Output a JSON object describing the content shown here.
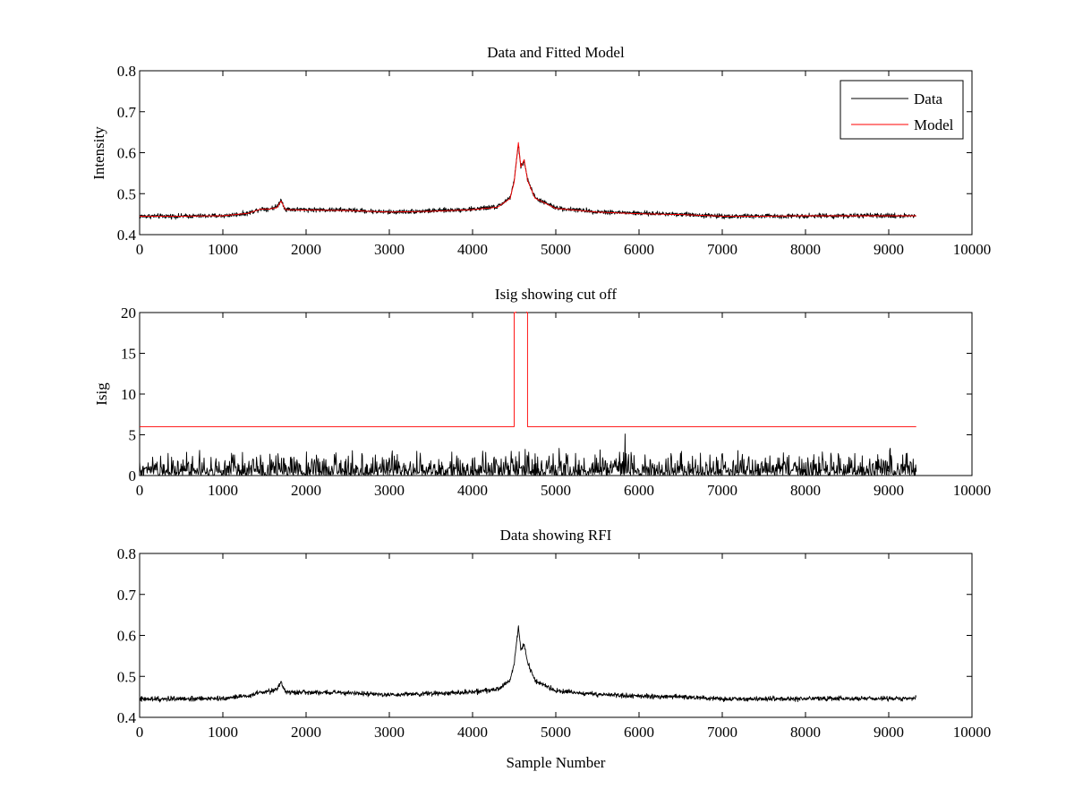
{
  "chart_data": [
    {
      "type": "line",
      "title": "Data and Fitted Model",
      "xlabel": "",
      "ylabel": "Intensity",
      "xlim": [
        0,
        10000
      ],
      "ylim": [
        0.4,
        0.8
      ],
      "xticks": [
        0,
        1000,
        2000,
        3000,
        4000,
        5000,
        6000,
        7000,
        8000,
        9000,
        10000
      ],
      "yticks": [
        0.4,
        0.5,
        0.6,
        0.7,
        0.8
      ],
      "grid": false,
      "legend": {
        "placement": "top-right",
        "entries": [
          "Data",
          "Model"
        ]
      },
      "series": [
        {
          "name": "Data",
          "color": "#000000",
          "style": "noisy",
          "noise": 0.004,
          "x_range": [
            0,
            9330
          ],
          "points": [
            [
              0,
              0.445
            ],
            [
              500,
              0.445
            ],
            [
              1000,
              0.446
            ],
            [
              1300,
              0.452
            ],
            [
              1450,
              0.463
            ],
            [
              1550,
              0.463
            ],
            [
              1650,
              0.468
            ],
            [
              1700,
              0.485
            ],
            [
              1750,
              0.462
            ],
            [
              2000,
              0.461
            ],
            [
              2500,
              0.46
            ],
            [
              3000,
              0.455
            ],
            [
              3500,
              0.458
            ],
            [
              4000,
              0.462
            ],
            [
              4300,
              0.468
            ],
            [
              4450,
              0.49
            ],
            [
              4500,
              0.53
            ],
            [
              4550,
              0.62
            ],
            [
              4580,
              0.565
            ],
            [
              4620,
              0.58
            ],
            [
              4660,
              0.535
            ],
            [
              4750,
              0.49
            ],
            [
              5000,
              0.465
            ],
            [
              5500,
              0.456
            ],
            [
              6000,
              0.452
            ],
            [
              6500,
              0.45
            ],
            [
              7000,
              0.445
            ],
            [
              7500,
              0.445
            ],
            [
              8000,
              0.446
            ],
            [
              9000,
              0.446
            ],
            [
              9330,
              0.446
            ]
          ]
        },
        {
          "name": "Model",
          "color": "#ff0000",
          "style": "smooth",
          "x_range": [
            0,
            9330
          ],
          "points": [
            [
              0,
              0.445
            ],
            [
              500,
              0.445
            ],
            [
              1000,
              0.446
            ],
            [
              1300,
              0.452
            ],
            [
              1450,
              0.462
            ],
            [
              1550,
              0.462
            ],
            [
              1650,
              0.466
            ],
            [
              1700,
              0.482
            ],
            [
              1750,
              0.461
            ],
            [
              2000,
              0.46
            ],
            [
              2500,
              0.459
            ],
            [
              3000,
              0.455
            ],
            [
              3500,
              0.457
            ],
            [
              4000,
              0.461
            ],
            [
              4300,
              0.467
            ],
            [
              4450,
              0.488
            ],
            [
              4500,
              0.528
            ],
            [
              4550,
              0.625
            ],
            [
              4580,
              0.565
            ],
            [
              4620,
              0.583
            ],
            [
              4660,
              0.533
            ],
            [
              4750,
              0.489
            ],
            [
              5000,
              0.464
            ],
            [
              5500,
              0.455
            ],
            [
              6000,
              0.451
            ],
            [
              6500,
              0.449
            ],
            [
              7000,
              0.445
            ],
            [
              7500,
              0.445
            ],
            [
              8000,
              0.446
            ],
            [
              9000,
              0.446
            ],
            [
              9330,
              0.446
            ]
          ]
        }
      ]
    },
    {
      "type": "line",
      "title": "Isig showing cut off",
      "xlabel": "",
      "ylabel": "Isig",
      "xlim": [
        0,
        10000
      ],
      "ylim": [
        0,
        20
      ],
      "xticks": [
        0,
        1000,
        2000,
        3000,
        4000,
        5000,
        6000,
        7000,
        8000,
        9000,
        10000
      ],
      "yticks": [
        0,
        5,
        10,
        15,
        20
      ],
      "grid": false,
      "series": [
        {
          "color": "#000000",
          "style": "spiky",
          "x_range": [
            0,
            9330
          ],
          "typical_max": 2.0,
          "max": 3.5,
          "outlier": [
            5830,
            5.1
          ]
        },
        {
          "color": "#ff0000",
          "style": "step",
          "points": [
            [
              0,
              6
            ],
            [
              4500,
              6
            ],
            [
              4500,
              20
            ],
            [
              4520,
              20
            ],
            [
              4520,
              20.5
            ],
            [
              4650,
              20.5
            ],
            [
              4650,
              20
            ],
            [
              4660,
              20
            ],
            [
              4660,
              6
            ],
            [
              9330,
              6
            ]
          ]
        }
      ]
    },
    {
      "type": "line",
      "title": "Data showing RFI",
      "xlabel": "Sample Number",
      "ylabel": "",
      "xlim": [
        0,
        10000
      ],
      "ylim": [
        0.4,
        0.8
      ],
      "xticks": [
        0,
        1000,
        2000,
        3000,
        4000,
        5000,
        6000,
        7000,
        8000,
        9000,
        10000
      ],
      "yticks": [
        0.4,
        0.5,
        0.6,
        0.7,
        0.8
      ],
      "grid": false,
      "series": [
        {
          "color": "#000000",
          "style": "noisy",
          "noise": 0.004,
          "x_range": [
            0,
            9330
          ],
          "points": [
            [
              0,
              0.445
            ],
            [
              500,
              0.445
            ],
            [
              1000,
              0.446
            ],
            [
              1300,
              0.452
            ],
            [
              1450,
              0.463
            ],
            [
              1550,
              0.463
            ],
            [
              1650,
              0.468
            ],
            [
              1700,
              0.485
            ],
            [
              1750,
              0.462
            ],
            [
              2000,
              0.461
            ],
            [
              2500,
              0.46
            ],
            [
              3000,
              0.455
            ],
            [
              3500,
              0.458
            ],
            [
              4000,
              0.462
            ],
            [
              4300,
              0.468
            ],
            [
              4450,
              0.49
            ],
            [
              4500,
              0.53
            ],
            [
              4550,
              0.62
            ],
            [
              4580,
              0.565
            ],
            [
              4620,
              0.58
            ],
            [
              4660,
              0.535
            ],
            [
              4750,
              0.49
            ],
            [
              5000,
              0.465
            ],
            [
              5500,
              0.456
            ],
            [
              6000,
              0.452
            ],
            [
              6500,
              0.45
            ],
            [
              7000,
              0.445
            ],
            [
              7500,
              0.445
            ],
            [
              8000,
              0.446
            ],
            [
              9000,
              0.446
            ],
            [
              9330,
              0.446
            ]
          ]
        }
      ]
    }
  ]
}
